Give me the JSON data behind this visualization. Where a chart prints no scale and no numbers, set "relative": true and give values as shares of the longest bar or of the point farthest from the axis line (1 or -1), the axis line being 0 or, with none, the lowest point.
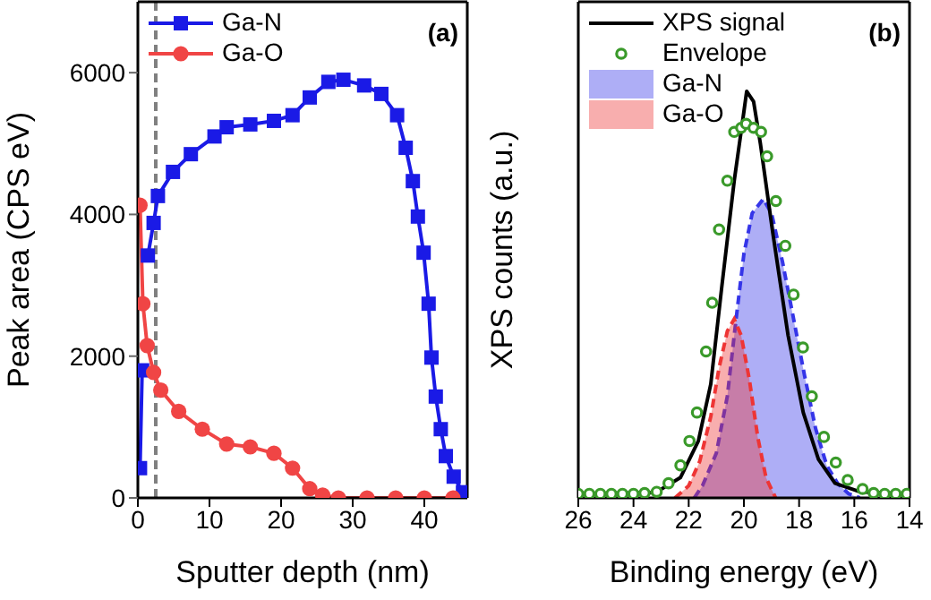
{
  "chart_data": [
    {
      "type": "line",
      "xlabel": "Sputter depth (nm)",
      "ylabel": "Peak area (CPS eV)",
      "annotations": [
        "(a)"
      ],
      "xlim": [
        0,
        46
      ],
      "xticks": [
        0,
        10,
        20,
        30,
        40
      ],
      "ylim": [
        0,
        7000
      ],
      "yticks": [
        0,
        2000,
        4000,
        6000
      ],
      "legend": "top left",
      "ref_lines": [
        {
          "axis": "x",
          "value": 2.5,
          "color": "#808080",
          "line_style": "dashed"
        }
      ],
      "series": [
        {
          "name": "Ga-N",
          "color": "#1a1ae6",
          "marker": "square",
          "x": [
            0.3,
            0.6,
            1.0,
            1.4,
            2.2,
            2.8,
            4.9,
            7.4,
            10.7,
            12.4,
            15.7,
            19,
            21.6,
            24,
            26.6,
            28.7,
            31.6,
            34,
            36.2,
            37.4,
            38.4,
            39.1,
            39.9,
            40.6,
            41,
            41.6,
            42.3,
            43,
            44.1,
            45.4
          ],
          "values": [
            420,
            1800,
            null,
            3420,
            3880,
            4260,
            4600,
            4850,
            5100,
            5230,
            5270,
            5320,
            5400,
            5650,
            5870,
            5900,
            5820,
            5700,
            5400,
            4940,
            4470,
            3970,
            3460,
            2740,
            1980,
            1430,
            970,
            590,
            300,
            80
          ]
        },
        {
          "name": "Ga-O",
          "color": "#f04545",
          "marker": "circle",
          "x": [
            0.3,
            0.7,
            1.3,
            2.2,
            3.2,
            5.7,
            9,
            12.4,
            15.7,
            19,
            21.6,
            24,
            25.8,
            28,
            32,
            36,
            40,
            44
          ],
          "values": [
            4130,
            2740,
            2150,
            1770,
            1520,
            1220,
            970,
            760,
            720,
            630,
            420,
            130,
            40,
            0,
            0,
            0,
            0,
            0
          ]
        }
      ]
    },
    {
      "type": "line",
      "relative": true,
      "xlabel": "Binding energy (eV)",
      "ylabel": "XPS counts (a.u.)",
      "annotations": [
        "(b)"
      ],
      "xlim": [
        26,
        14
      ],
      "xticks": [
        26,
        24,
        22,
        20,
        18,
        16,
        14
      ],
      "legend": "top left",
      "series": [
        {
          "name": "XPS signal",
          "color": "#000000",
          "marker": "none",
          "x": [
            26,
            23.2,
            22.3,
            21.65,
            21.2,
            20.8,
            20.35,
            20.0,
            19.9,
            19.65,
            19.4,
            18.95,
            18.4,
            17.85,
            17.3,
            16.7,
            15.8,
            14
          ],
          "values": [
            0.01,
            0.013,
            0.05,
            0.14,
            0.28,
            0.52,
            0.78,
            0.95,
            1.0,
            0.975,
            0.87,
            0.65,
            0.4,
            0.21,
            0.095,
            0.036,
            0.015,
            0.01
          ]
        },
        {
          "name": "Envelope",
          "type": "scatter",
          "color": "#3a9a2a",
          "marker": "circle",
          "x": [
            26,
            25.6,
            25.2,
            24.8,
            24.4,
            24,
            23.6,
            23.16,
            22.73,
            22.3,
            21.97,
            21.7,
            21.37,
            21.15,
            20.9,
            20.6,
            20.35,
            20.1,
            19.92,
            19.65,
            19.38,
            19.16,
            18.84,
            18.5,
            18.2,
            17.86,
            17.54,
            17.1,
            16.67,
            16.24,
            15.7,
            15.3,
            14.9,
            14.5,
            14.1
          ],
          "values": [
            0.01,
            0.01,
            0.01,
            0.01,
            0.01,
            0.01,
            0.012,
            0.015,
            0.036,
            0.08,
            0.14,
            0.21,
            0.36,
            0.48,
            0.66,
            0.78,
            0.9,
            0.91,
            0.92,
            0.91,
            0.9,
            0.84,
            0.73,
            0.62,
            0.5,
            0.37,
            0.25,
            0.15,
            0.087,
            0.044,
            0.022,
            0.012,
            0.01,
            0.01,
            0.01
          ]
        },
        {
          "name": "Ga-N",
          "type": "area",
          "color": "#3535e8",
          "line_style": "dashed",
          "x": [
            21.8,
            21.5,
            21.0,
            20.6,
            20.3,
            20.0,
            19.7,
            19.3,
            19.0,
            18.6,
            18.2,
            17.8,
            17.4,
            17.0,
            16.6,
            16.2,
            15.8
          ],
          "values": [
            0,
            0.03,
            0.11,
            0.25,
            0.43,
            0.6,
            0.7,
            0.735,
            0.7,
            0.58,
            0.44,
            0.3,
            0.17,
            0.08,
            0.035,
            0.01,
            0
          ]
        },
        {
          "name": "Ga-O",
          "type": "area",
          "color": "#ee3535",
          "line_style": "dashed",
          "x": [
            22.5,
            22.0,
            21.6,
            21.2,
            20.9,
            20.6,
            20.35,
            20.1,
            19.8,
            19.5,
            19.2,
            18.85
          ],
          "values": [
            0,
            0.03,
            0.09,
            0.2,
            0.32,
            0.41,
            0.44,
            0.4,
            0.29,
            0.15,
            0.05,
            0
          ]
        }
      ]
    }
  ]
}
